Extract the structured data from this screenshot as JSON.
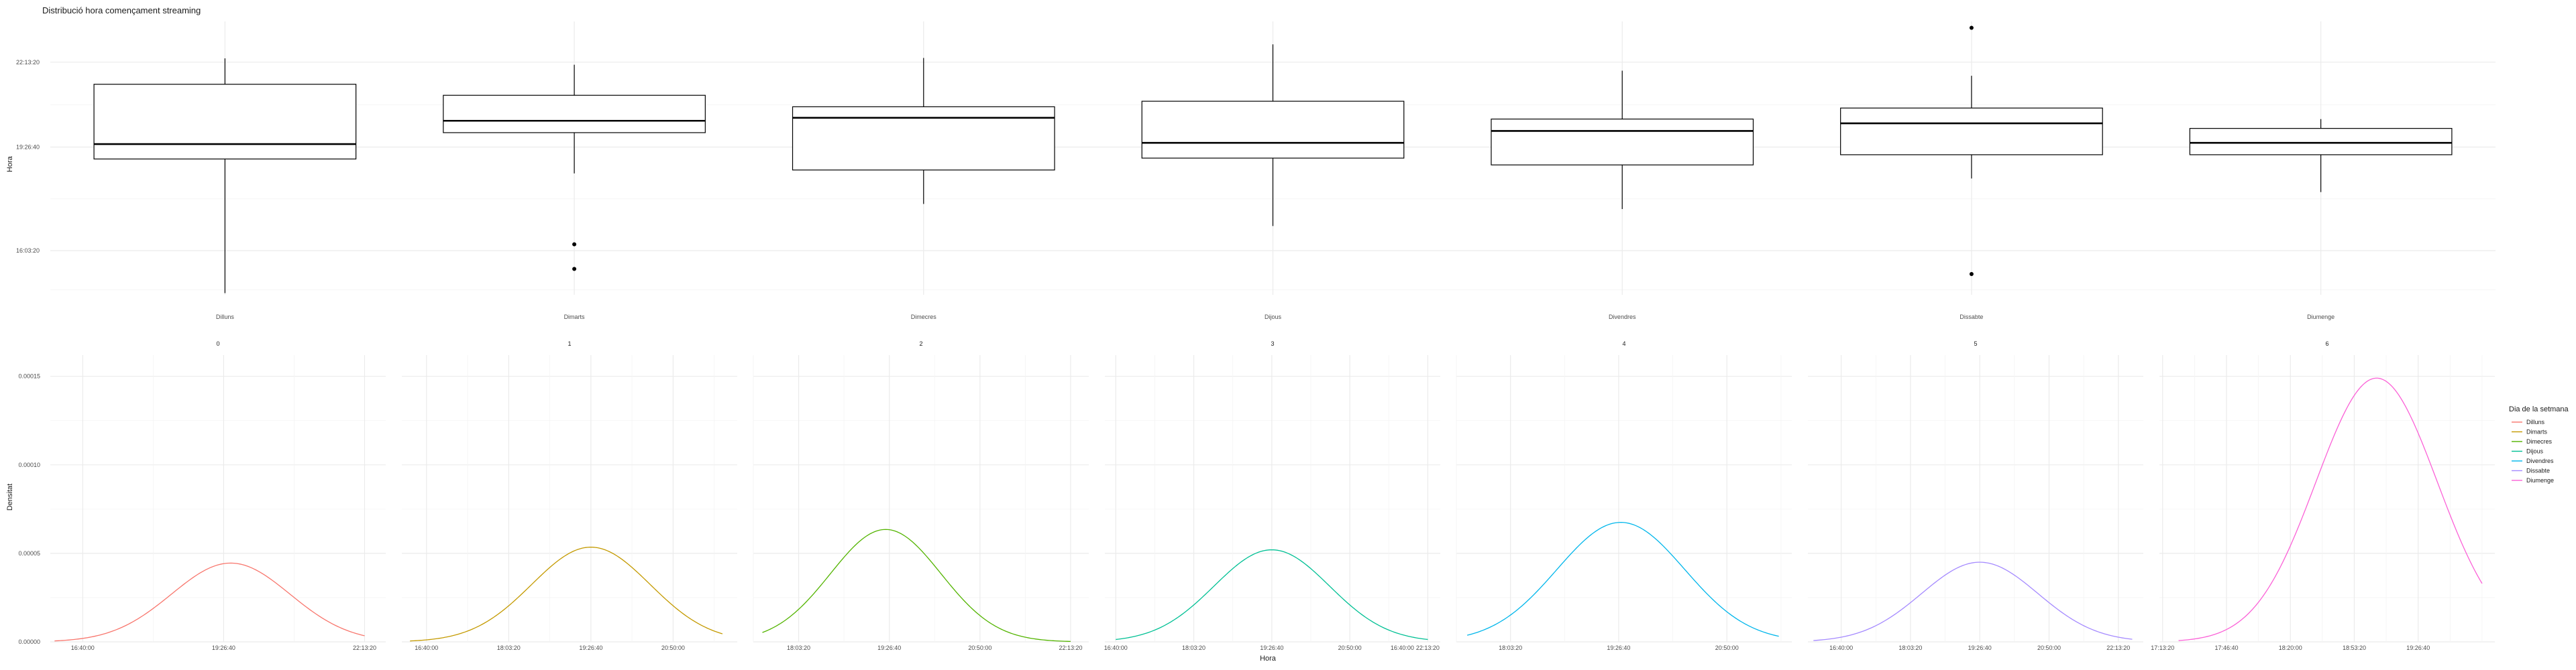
{
  "chart_data": [
    {
      "type": "box",
      "title": "Distribució hora començament streaming",
      "xlabel": "",
      "ylabel": "Hora",
      "y_ticks": [
        "16:03:20",
        "19:26:40",
        "22:13:20"
      ],
      "y_tick_seconds": [
        57800,
        70000,
        80000
      ],
      "ylim_seconds": [
        52600,
        84800
      ],
      "grid": true,
      "categories": [
        "Dilluns",
        "Dimarts",
        "Dimecres",
        "Dijous",
        "Divendres",
        "Dissabte",
        "Diumenge"
      ],
      "boxes": [
        {
          "category": "Dilluns",
          "whisker_low": 52800,
          "q1": 68600,
          "median": 70350,
          "q3": 77400,
          "whisker_high": 80450,
          "outliers": []
        },
        {
          "category": "Dimarts",
          "whisker_low": 66900,
          "q1": 71700,
          "median": 73100,
          "q3": 76100,
          "whisker_high": 79700,
          "outliers": [
            58550,
            55650
          ]
        },
        {
          "category": "Dimecres",
          "whisker_low": 63300,
          "q1": 67300,
          "median": 73450,
          "q3": 74750,
          "whisker_high": 80500,
          "outliers": []
        },
        {
          "category": "Dijous",
          "whisker_low": 60700,
          "q1": 68700,
          "median": 70500,
          "q3": 75400,
          "whisker_high": 82100,
          "outliers": []
        },
        {
          "category": "Divendres",
          "whisker_low": 62700,
          "q1": 67900,
          "median": 71900,
          "q3": 73300,
          "whisker_high": 79000,
          "outliers": []
        },
        {
          "category": "Dissabte",
          "whisker_low": 66300,
          "q1": 69100,
          "median": 72800,
          "q3": 74600,
          "whisker_high": 78400,
          "outliers": [
            84050,
            55050
          ]
        },
        {
          "category": "Diumenge",
          "whisker_low": 64700,
          "q1": 69100,
          "median": 70500,
          "q3": 72200,
          "whisker_high": 73300,
          "outliers": []
        }
      ]
    },
    {
      "type": "line",
      "subtype": "density",
      "xlabel": "Hora",
      "ylabel": "Densitat",
      "y_ticks": [
        "0.00000",
        "0.00005",
        "0.00010",
        "0.00015"
      ],
      "y_tick_values": [
        0,
        5e-05,
        0.0001,
        0.00015
      ],
      "ylim": [
        0,
        0.000162
      ],
      "grid": true,
      "legend": {
        "title": "Dia de la setmana",
        "placement": "right"
      },
      "panels": [
        {
          "strip": "0",
          "name": "Dilluns",
          "color": "#F8766D",
          "xlim": [
            57700,
            81500
          ],
          "x_ticks": [
            "16:40:00",
            "19:26:40",
            "22:13:20"
          ],
          "x_tick_seconds": [
            60000,
            70000,
            80000
          ],
          "mean": 70500,
          "sd": 4200,
          "x_from": 58000,
          "x_to": 80000,
          "y_peak": 4.45e-05
        },
        {
          "strip": "1",
          "name": "Dimarts",
          "color": "#C49A00",
          "xlim": [
            58500,
            78900
          ],
          "x_ticks": [
            "16:40:00",
            "18:03:20",
            "19:26:40",
            "20:50:00"
          ],
          "x_tick_seconds": [
            60000,
            65000,
            70000,
            75000
          ],
          "mean": 70000,
          "sd": 3600,
          "x_from": 59000,
          "x_to": 78000,
          "y_peak": 5.35e-05
        },
        {
          "strip": "2",
          "name": "Dimecres",
          "color": "#53B400",
          "xlim": [
            62500,
            81000
          ],
          "x_ticks": [
            "18:03:20",
            "19:26:40",
            "20:50:00",
            "22:13:20"
          ],
          "x_tick_seconds": [
            65000,
            70000,
            75000,
            80000
          ],
          "mean": 69800,
          "sd": 3050,
          "x_from": 63000,
          "x_to": 80000,
          "y_peak": 6.35e-05
        },
        {
          "strip": "3",
          "name": "Dijous",
          "color": "#00C094",
          "xlim": [
            59300,
            80800
          ],
          "x_ticks": [
            "16:40:00",
            "18:03:20",
            "19:26:40",
            "20:50:00",
            "22:13:20"
          ],
          "x_tick_seconds": [
            60000,
            65000,
            70000,
            75000,
            80000
          ],
          "mean": 70000,
          "sd": 3700,
          "x_from": 60000,
          "x_to": 80000,
          "y_peak": 5.2e-05
        },
        {
          "strip": "4",
          "name": "Divendres",
          "color": "#00B6EB",
          "xlim": [
            62500,
            78000
          ],
          "x_ticks": [
            "16:40:00",
            "18:03:20",
            "19:26:40",
            "20:50:00"
          ],
          "x_tick_seconds": [
            60000,
            65000,
            70000,
            75000
          ],
          "mean": 70100,
          "sd": 2950,
          "x_from": 63000,
          "x_to": 77400,
          "y_peak": 6.75e-05
        },
        {
          "strip": "5",
          "name": "Dissabte",
          "color": "#A58AFF",
          "xlim": [
            57600,
            81800
          ],
          "x_ticks": [
            "16:40:00",
            "18:03:20",
            "19:26:40",
            "20:50:00",
            "22:13:20"
          ],
          "x_tick_seconds": [
            60000,
            65000,
            70000,
            75000,
            80000
          ],
          "mean": 70000,
          "sd": 4200,
          "x_from": 58000,
          "x_to": 81000,
          "y_peak": 4.5e-05
        },
        {
          "strip": "6",
          "name": "Diumenge",
          "color": "#FB61D7",
          "xlim": [
            61900,
            72400
          ],
          "x_ticks": [
            "17:13:20",
            "17:46:40",
            "18:20:00",
            "18:53:20",
            "19:26:40"
          ],
          "x_tick_seconds": [
            62000,
            64000,
            66000,
            68000,
            70000
          ],
          "mean": 68700,
          "sd": 1900,
          "x_from": 62500,
          "x_to": 72000,
          "y_peak": 0.000149
        }
      ]
    }
  ]
}
